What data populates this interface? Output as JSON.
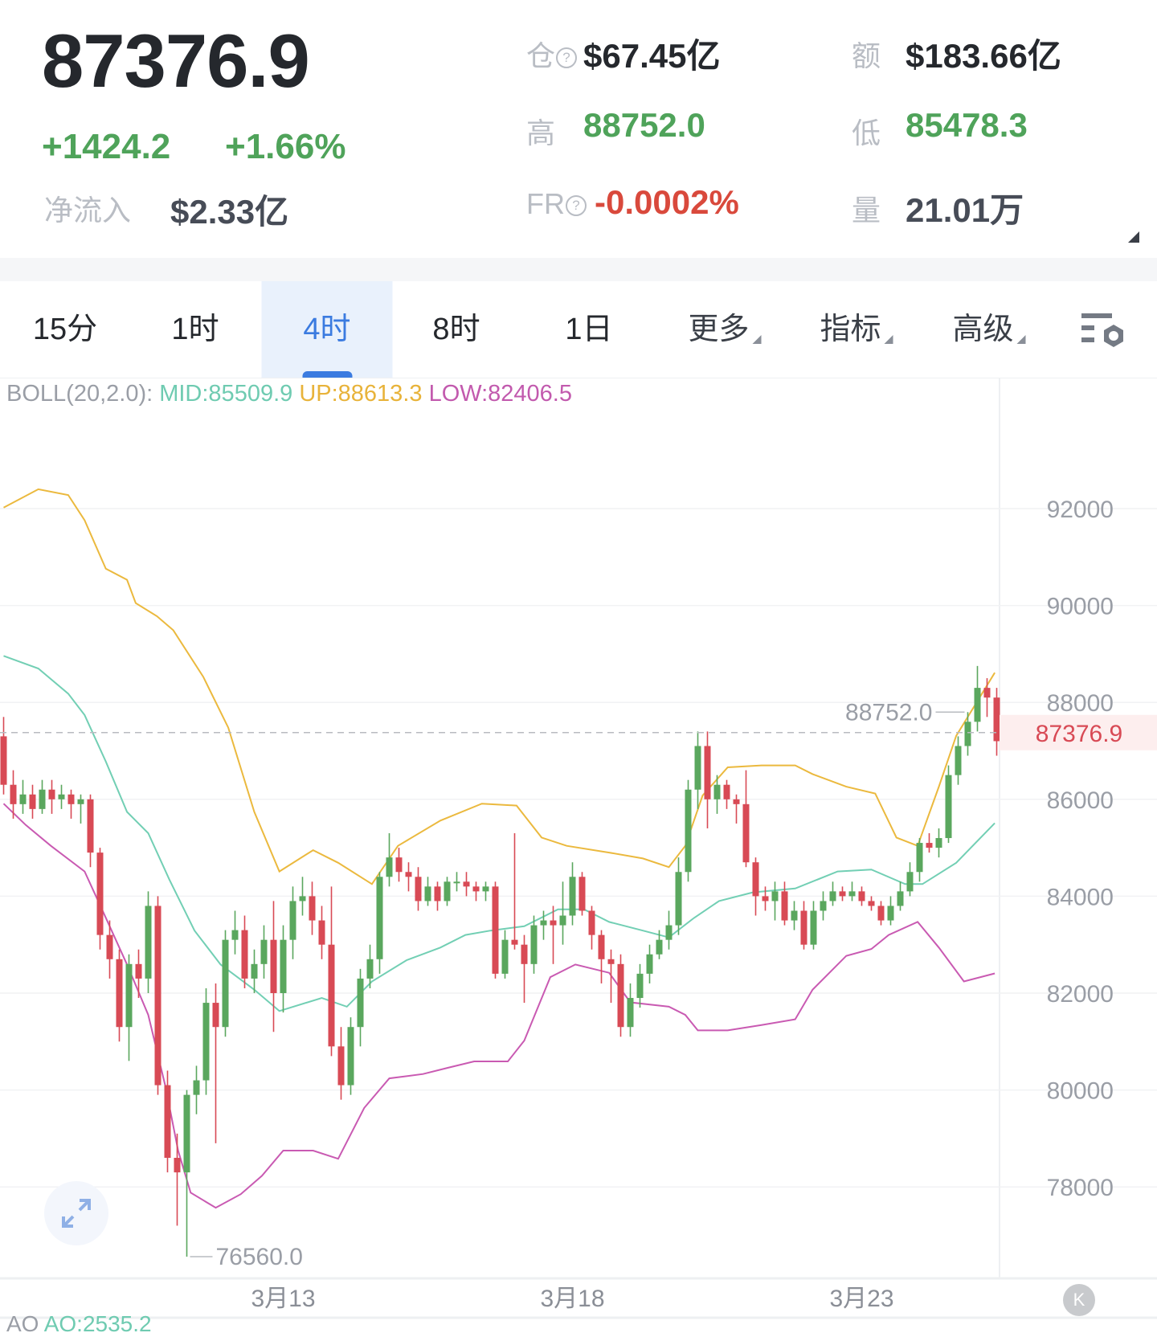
{
  "header": {
    "last_price": "87376.9",
    "change": "+1424.2",
    "change_pct": "+1.66%",
    "net_inflow_label": "净流入",
    "net_inflow": "$2.33亿",
    "open_interest_label": "仓",
    "open_interest": "$67.45亿",
    "turnover_label": "额",
    "turnover": "$183.66亿",
    "high_label": "高",
    "high": "88752.0",
    "low_label": "低",
    "low": "85478.3",
    "funding_label": "FR",
    "funding_rate": "-0.0002%",
    "volume_label": "量",
    "volume": "21.01万",
    "help_glyph": "?"
  },
  "tabs": [
    {
      "label": "15分"
    },
    {
      "label": "1时"
    },
    {
      "label": "4时",
      "active": true
    },
    {
      "label": "8时"
    },
    {
      "label": "1日"
    },
    {
      "label": "更多",
      "dropdown": true
    },
    {
      "label": "指标",
      "dropdown": true
    },
    {
      "label": "高级",
      "dropdown": true
    }
  ],
  "indicator": {
    "name": "BOLL(20,2.0):",
    "mid": "MID:85509.9",
    "up": "UP:88613.3",
    "low": "LOW:82406.5"
  },
  "footer_indicator": {
    "name": "AO",
    "value": "AO:2535.2"
  },
  "colors": {
    "up": "#5aa75e",
    "down": "#d84a55",
    "mid": "#72cfb4",
    "upper": "#ebb93e",
    "lower": "#c95ab2",
    "accent": "#3b7be0"
  },
  "chart_data": {
    "type": "candlestick",
    "interval": "4时",
    "ylim": [
      75800,
      94000
    ],
    "yticks": [
      78000,
      80000,
      82000,
      84000,
      86000,
      88000,
      90000,
      92000
    ],
    "ytick_labels": [
      "78000",
      "80000",
      "82000",
      "84000",
      "86000",
      "88000",
      "90000",
      "92000"
    ],
    "xtick_labels": [
      {
        "candle": 29,
        "label": "3月13"
      },
      {
        "candle": 59,
        "label": "3月18"
      },
      {
        "candle": 89,
        "label": "3月23"
      }
    ],
    "last_price": 87376.9,
    "last_price_label": "87376.9",
    "max_label": "88752.0",
    "min_label": "76560.0",
    "max_candle": 100,
    "min_candle": 19,
    "candles": [
      [
        87300,
        87700,
        86100,
        86300
      ],
      [
        86300,
        86600,
        85600,
        85900
      ],
      [
        85900,
        86400,
        85700,
        86100
      ],
      [
        86100,
        86300,
        85600,
        85800
      ],
      [
        85800,
        86400,
        85700,
        86200
      ],
      [
        86200,
        86400,
        85700,
        86000
      ],
      [
        86000,
        86300,
        85800,
        86100
      ],
      [
        86100,
        86200,
        85600,
        85900
      ],
      [
        85900,
        86100,
        85500,
        86000
      ],
      [
        86000,
        86100,
        84600,
        84900
      ],
      [
        84900,
        85000,
        82900,
        83200
      ],
      [
        83200,
        83500,
        82300,
        82700
      ],
      [
        82700,
        82900,
        81000,
        81300
      ],
      [
        81300,
        82800,
        80600,
        82600
      ],
      [
        82600,
        82900,
        81900,
        82300
      ],
      [
        82300,
        84100,
        82000,
        83800
      ],
      [
        83800,
        84000,
        79900,
        80100
      ],
      [
        80100,
        80400,
        78300,
        78600
      ],
      [
        78600,
        79100,
        77200,
        78300
      ],
      [
        78300,
        80000,
        76560,
        79900
      ],
      [
        79900,
        80500,
        79500,
        80200
      ],
      [
        80200,
        82100,
        79900,
        81800
      ],
      [
        81800,
        82200,
        78900,
        81300
      ],
      [
        81300,
        83300,
        81100,
        83100
      ],
      [
        83100,
        83700,
        82800,
        83300
      ],
      [
        83300,
        83600,
        82100,
        82300
      ],
      [
        82300,
        82900,
        82000,
        82600
      ],
      [
        82600,
        83400,
        82300,
        83100
      ],
      [
        83100,
        83900,
        81200,
        82000
      ],
      [
        82000,
        83400,
        81600,
        83100
      ],
      [
        83100,
        84200,
        82700,
        83900
      ],
      [
        83900,
        84400,
        83600,
        84000
      ],
      [
        84000,
        84300,
        83200,
        83500
      ],
      [
        83500,
        83800,
        82700,
        83000
      ],
      [
        83000,
        84200,
        80700,
        80900
      ],
      [
        80900,
        81300,
        79800,
        80100
      ],
      [
        80100,
        81500,
        79900,
        81300
      ],
      [
        81300,
        82500,
        80900,
        82300
      ],
      [
        82300,
        83000,
        82100,
        82700
      ],
      [
        82700,
        84500,
        82400,
        84400
      ],
      [
        84400,
        85300,
        84200,
        84800
      ],
      [
        84800,
        85000,
        84300,
        84500
      ],
      [
        84500,
        84700,
        84100,
        84400
      ],
      [
        84400,
        84600,
        83700,
        83900
      ],
      [
        83900,
        84400,
        83800,
        84200
      ],
      [
        84200,
        84300,
        83700,
        83900
      ],
      [
        83900,
        84400,
        83800,
        84300
      ],
      [
        84300,
        84500,
        84100,
        84300
      ],
      [
        84300,
        84500,
        84000,
        84200
      ],
      [
        84200,
        84300,
        83900,
        84100
      ],
      [
        84100,
        84300,
        83900,
        84200
      ],
      [
        84200,
        84300,
        82300,
        82400
      ],
      [
        82400,
        83300,
        82300,
        83100
      ],
      [
        83100,
        85300,
        82900,
        83000
      ],
      [
        83000,
        83200,
        81800,
        82600
      ],
      [
        82600,
        83600,
        82400,
        83400
      ],
      [
        83400,
        83700,
        83100,
        83500
      ],
      [
        83500,
        83800,
        82600,
        83400
      ],
      [
        83400,
        84300,
        83000,
        83600
      ],
      [
        83600,
        84700,
        83400,
        84400
      ],
      [
        84400,
        84500,
        83600,
        83700
      ],
      [
        83700,
        83800,
        82900,
        83200
      ],
      [
        83200,
        83300,
        82200,
        82700
      ],
      [
        82700,
        82900,
        81800,
        82600
      ],
      [
        82600,
        82800,
        81100,
        81300
      ],
      [
        81300,
        82200,
        81100,
        81900
      ],
      [
        81900,
        82600,
        81700,
        82400
      ],
      [
        82400,
        83000,
        82200,
        82800
      ],
      [
        82800,
        83300,
        82700,
        83100
      ],
      [
        83100,
        83700,
        82900,
        83400
      ],
      [
        83400,
        84800,
        83200,
        84500
      ],
      [
        84500,
        86400,
        84300,
        86200
      ],
      [
        86200,
        87400,
        85800,
        87100
      ],
      [
        87100,
        87400,
        85400,
        86000
      ],
      [
        86000,
        86500,
        85700,
        86300
      ],
      [
        86300,
        86400,
        85800,
        86000
      ],
      [
        86000,
        86100,
        85500,
        85900
      ],
      [
        85900,
        86600,
        84600,
        84700
      ],
      [
        84700,
        84800,
        83600,
        84000
      ],
      [
        84000,
        84200,
        83700,
        83900
      ],
      [
        83900,
        84300,
        83500,
        84100
      ],
      [
        84100,
        84300,
        83400,
        83500
      ],
      [
        83500,
        83900,
        83300,
        83700
      ],
      [
        83700,
        83900,
        82900,
        83000
      ],
      [
        83000,
        83900,
        82900,
        83700
      ],
      [
        83700,
        84100,
        83500,
        83900
      ],
      [
        83900,
        84300,
        83800,
        84100
      ],
      [
        84100,
        84200,
        83900,
        84000
      ],
      [
        84000,
        84300,
        83900,
        84100
      ],
      [
        84100,
        84200,
        83800,
        83900
      ],
      [
        83900,
        84000,
        83700,
        83800
      ],
      [
        83800,
        83900,
        83400,
        83500
      ],
      [
        83500,
        84000,
        83400,
        83800
      ],
      [
        83800,
        84300,
        83700,
        84100
      ],
      [
        84100,
        84700,
        84000,
        84500
      ],
      [
        84500,
        85200,
        84300,
        85100
      ],
      [
        85100,
        85300,
        84900,
        85000
      ],
      [
        85000,
        85400,
        84800,
        85200
      ],
      [
        85200,
        86700,
        85100,
        86500
      ],
      [
        86500,
        87300,
        86300,
        87100
      ],
      [
        87100,
        87800,
        86900,
        87600
      ],
      [
        87600,
        88752,
        87400,
        88300
      ],
      [
        88300,
        88500,
        87700,
        88100
      ],
      [
        88100,
        88300,
        86900,
        87200
      ],
      [
        87200,
        87500,
        87200,
        87376.9
      ]
    ],
    "boll": {
      "up": [
        [
          0,
          92020
        ],
        [
          3.6,
          92400
        ],
        [
          6.7,
          92280
        ],
        [
          8.4,
          91760
        ],
        [
          10.6,
          90760
        ],
        [
          12.8,
          90530
        ],
        [
          13.7,
          90050
        ],
        [
          15.9,
          89780
        ],
        [
          17.6,
          89490
        ],
        [
          20.7,
          88530
        ],
        [
          23.3,
          87480
        ],
        [
          26,
          85740
        ],
        [
          28.6,
          84510
        ],
        [
          32.1,
          84950
        ],
        [
          34.7,
          84690
        ],
        [
          38.2,
          84250
        ],
        [
          40.9,
          85040
        ],
        [
          45.3,
          85560
        ],
        [
          49.6,
          85910
        ],
        [
          53.2,
          85870
        ],
        [
          55.8,
          85210
        ],
        [
          58.4,
          85040
        ],
        [
          62.8,
          84900
        ],
        [
          66.3,
          84780
        ],
        [
          69,
          84600
        ],
        [
          70.7,
          85040
        ],
        [
          72.5,
          86080
        ],
        [
          75.1,
          86660
        ],
        [
          78.6,
          86700
        ],
        [
          82.1,
          86700
        ],
        [
          83.9,
          86520
        ],
        [
          87.4,
          86260
        ],
        [
          90.4,
          86120
        ],
        [
          92.6,
          85210
        ],
        [
          94.8,
          85040
        ],
        [
          97,
          86260
        ],
        [
          98.8,
          87310
        ],
        [
          102.8,
          88613.3
        ]
      ],
      "mid": [
        [
          0,
          88960
        ],
        [
          3.6,
          88700
        ],
        [
          6.7,
          88180
        ],
        [
          8.4,
          87740
        ],
        [
          10.6,
          86780
        ],
        [
          12.8,
          85740
        ],
        [
          15,
          85300
        ],
        [
          17.2,
          84340
        ],
        [
          19.8,
          83290
        ],
        [
          22.5,
          82590
        ],
        [
          26,
          82070
        ],
        [
          28.6,
          81630
        ],
        [
          33,
          81900
        ],
        [
          35.6,
          81720
        ],
        [
          38.2,
          82240
        ],
        [
          41.8,
          82680
        ],
        [
          45.3,
          82940
        ],
        [
          47.9,
          83200
        ],
        [
          50.5,
          83290
        ],
        [
          54,
          83380
        ],
        [
          57.5,
          83730
        ],
        [
          60.2,
          83730
        ],
        [
          62.8,
          83470
        ],
        [
          66.3,
          83290
        ],
        [
          69,
          83150
        ],
        [
          71.6,
          83550
        ],
        [
          74.2,
          83900
        ],
        [
          77.7,
          84080
        ],
        [
          82.1,
          84160
        ],
        [
          86.5,
          84510
        ],
        [
          90,
          84550
        ],
        [
          93.5,
          84250
        ],
        [
          95.3,
          84250
        ],
        [
          98.8,
          84690
        ],
        [
          102.8,
          85509.9
        ]
      ],
      "low": [
        [
          0,
          85910
        ],
        [
          2.3,
          85470
        ],
        [
          4.9,
          85040
        ],
        [
          8.4,
          84510
        ],
        [
          10.2,
          83730
        ],
        [
          12.8,
          82590
        ],
        [
          15,
          81550
        ],
        [
          16.8,
          80060
        ],
        [
          18.1,
          78750
        ],
        [
          19.4,
          77880
        ],
        [
          22,
          77570
        ],
        [
          24.6,
          77850
        ],
        [
          26.8,
          78230
        ],
        [
          29,
          78750
        ],
        [
          32.1,
          78750
        ],
        [
          34.7,
          78580
        ],
        [
          37.4,
          79630
        ],
        [
          40,
          80240
        ],
        [
          43.5,
          80330
        ],
        [
          46.1,
          80460
        ],
        [
          48.8,
          80590
        ],
        [
          52.3,
          80590
        ],
        [
          54,
          81020
        ],
        [
          56.7,
          82330
        ],
        [
          59.3,
          82590
        ],
        [
          62.8,
          82420
        ],
        [
          65,
          81810
        ],
        [
          69,
          81720
        ],
        [
          70.7,
          81550
        ],
        [
          72,
          81230
        ],
        [
          75.1,
          81230
        ],
        [
          78.6,
          81340
        ],
        [
          82.1,
          81460
        ],
        [
          83.9,
          82070
        ],
        [
          87.4,
          82770
        ],
        [
          90,
          82910
        ],
        [
          91.8,
          83200
        ],
        [
          94.8,
          83470
        ],
        [
          97,
          82940
        ],
        [
          99.6,
          82240
        ],
        [
          102.8,
          82406.5
        ]
      ]
    }
  }
}
